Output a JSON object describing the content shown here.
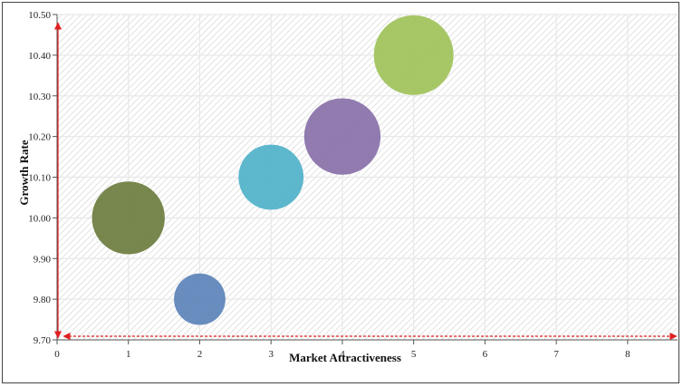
{
  "chart_data": {
    "type": "bubble",
    "title": "",
    "xlabel": "Market Attractiveness",
    "ylabel": "Growth Rate",
    "xlim": [
      0,
      8.7
    ],
    "ylim": [
      9.7,
      10.5
    ],
    "x_ticks": [
      0,
      1,
      2,
      3,
      4,
      5,
      6,
      7,
      8
    ],
    "y_ticks": [
      9.7,
      9.8,
      9.9,
      10.0,
      10.1,
      10.2,
      10.3,
      10.4,
      10.5
    ],
    "y_tick_labels": [
      "9.70",
      "9.80",
      "9.90",
      "10.00",
      "10.10",
      "10.20",
      "10.30",
      "10.40",
      "10.50"
    ],
    "grid": true,
    "points": [
      {
        "x": 1,
        "y": 10.0,
        "size": 1.0,
        "color": "#6b7d3e"
      },
      {
        "x": 2,
        "y": 9.8,
        "size": 0.5,
        "color": "#5b83b8"
      },
      {
        "x": 3,
        "y": 10.1,
        "size": 0.8,
        "color": "#4fb1c9"
      },
      {
        "x": 4,
        "y": 10.2,
        "size": 1.1,
        "color": "#8870a8"
      },
      {
        "x": 5,
        "y": 10.4,
        "size": 1.2,
        "color": "#9fc25a"
      }
    ],
    "arrow_color": "#e02020"
  }
}
